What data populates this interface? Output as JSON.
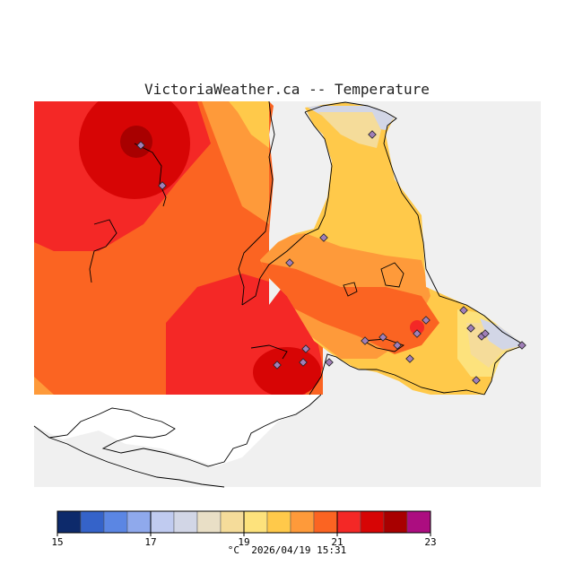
{
  "title": "VictoriaWeather.ca -- Temperature",
  "legend": {
    "colors": [
      "#0d2a6b",
      "#3563c9",
      "#5b86e3",
      "#8fa9ec",
      "#c0cbf0",
      "#d2d6e6",
      "#e9dfc6",
      "#f5dc9a",
      "#fde27c",
      "#ffc94a",
      "#fe9a3a",
      "#fb6422",
      "#f42826",
      "#d70505",
      "#a80000",
      "#ac0d80"
    ],
    "tick_labels": [
      "15",
      "17",
      "19",
      "21",
      "23"
    ],
    "units": "°C",
    "timestamp": "2026/04/19 15:31"
  },
  "colors": {
    "no_data": "#f0f0f0",
    "outline": "#000000",
    "station": "#a07fb8"
  }
}
